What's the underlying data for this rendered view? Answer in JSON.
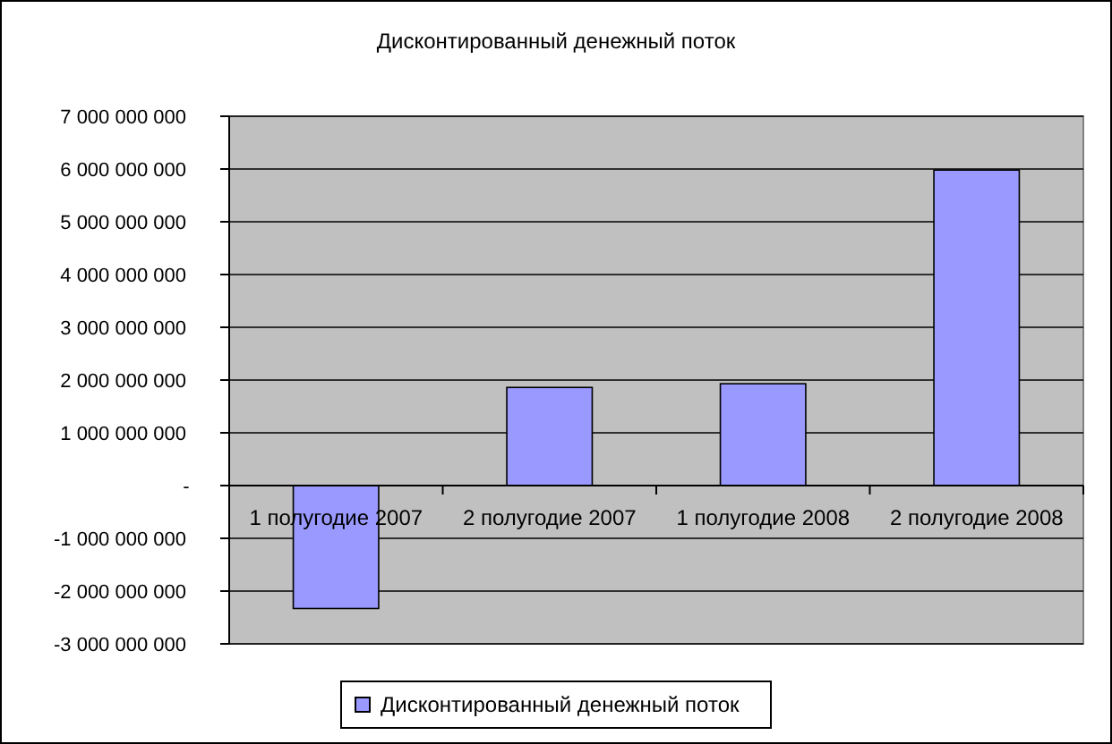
{
  "chart_data": {
    "type": "bar",
    "title": "Дисконтированный денежный поток",
    "categories": [
      "1 полугодие 2007",
      "2 полугодие 2007",
      "1 полугодие 2008",
      "2 полугодие 2008"
    ],
    "series": [
      {
        "name": "Дисконтированный денежный поток",
        "color": "#9999ff",
        "values": [
          -2330000000,
          1860000000,
          1930000000,
          5980000000
        ]
      }
    ],
    "ylim": [
      -3000000000,
      7000000000
    ],
    "yticks": [
      {
        "value": -3000000000,
        "label": "-3 000 000 000"
      },
      {
        "value": -2000000000,
        "label": "-2 000 000 000"
      },
      {
        "value": -1000000000,
        "label": "-1 000 000 000"
      },
      {
        "value": 0,
        "label": "-"
      },
      {
        "value": 1000000000,
        "label": "1 000 000 000"
      },
      {
        "value": 2000000000,
        "label": "2 000 000 000"
      },
      {
        "value": 3000000000,
        "label": "3 000 000 000"
      },
      {
        "value": 4000000000,
        "label": "4 000 000 000"
      },
      {
        "value": 5000000000,
        "label": "5 000 000 000"
      },
      {
        "value": 6000000000,
        "label": "6 000 000 000"
      },
      {
        "value": 7000000000,
        "label": "7 000 000 000"
      }
    ],
    "grid": "y",
    "legend": "bottom"
  }
}
